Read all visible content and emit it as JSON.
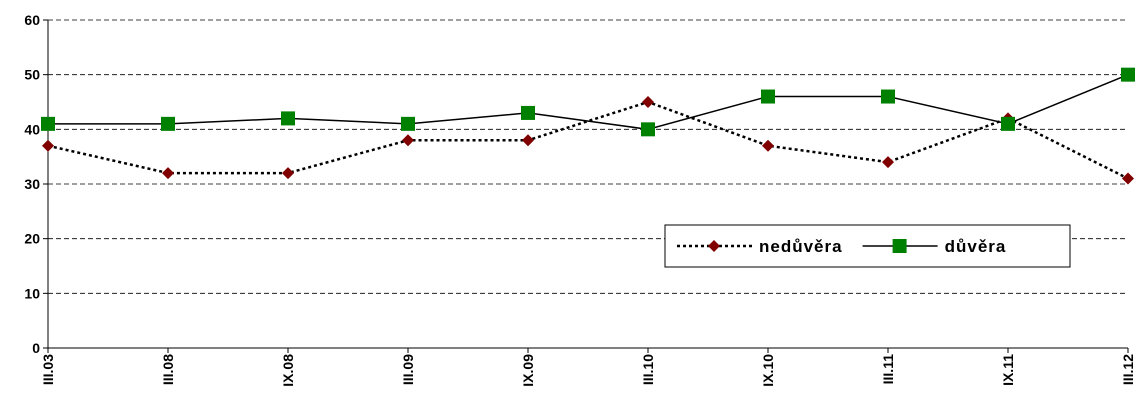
{
  "chart_data": {
    "type": "line",
    "categories": [
      "III.03",
      "III.08",
      "IX.08",
      "III.09",
      "IX.09",
      "III.10",
      "IX.10",
      "III.11",
      "IX.11",
      "III.12"
    ],
    "series": [
      {
        "name": "nedůvěra",
        "color": "#800000",
        "line_style": "dotted",
        "marker": "diamond",
        "values": [
          37,
          32,
          32,
          38,
          38,
          45,
          37,
          34,
          42,
          31
        ]
      },
      {
        "name": "důvěra",
        "color": "#008000",
        "line_style": "solid",
        "marker": "square",
        "values": [
          41,
          41,
          42,
          41,
          43,
          40,
          46,
          46,
          41,
          50
        ]
      }
    ],
    "ylim": [
      0,
      60
    ],
    "yticks": [
      0,
      10,
      20,
      30,
      40,
      50,
      60
    ],
    "grid": true
  }
}
